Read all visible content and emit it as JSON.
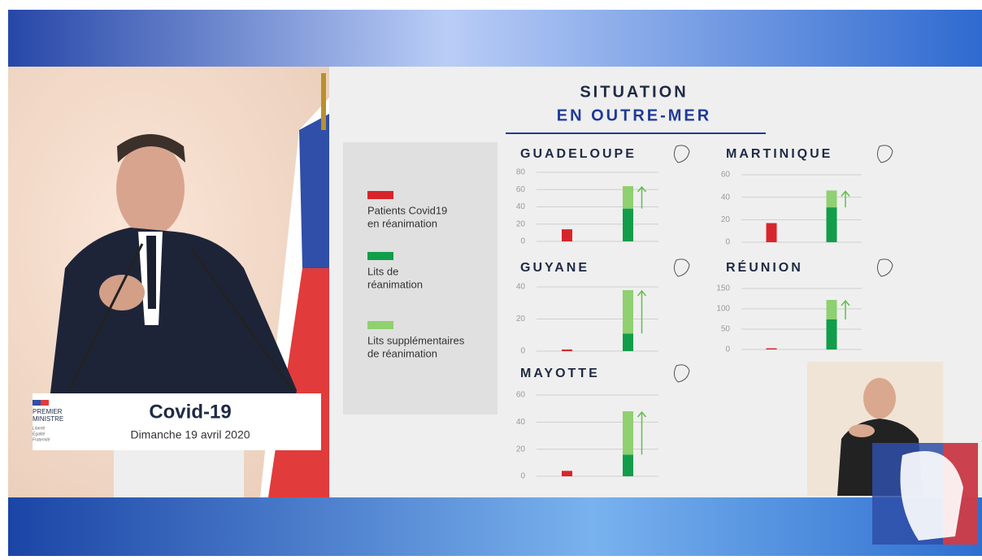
{
  "slide": {
    "title": [
      "SITUATION",
      "EN OUTRE-MER"
    ]
  },
  "podium": {
    "logo": [
      "PREMIER",
      "MINISTRE"
    ],
    "motto": [
      "Liberté",
      "Égalité",
      "Fraternité"
    ],
    "title": "Covid-19",
    "date": "Dimanche 19 avril 2020"
  },
  "legend": [
    {
      "label": [
        "Patients Covid19",
        "en réanimation"
      ],
      "color": "#d7262b"
    },
    {
      "label": [
        "Lits de",
        "réanimation"
      ],
      "color": "#129d4a"
    },
    {
      "label": [
        "Lits supplémentaires",
        "de réanimation"
      ],
      "color": "#8fd070"
    }
  ],
  "chart_data": [
    {
      "type": "bar",
      "title": "GUADELOUPE",
      "stacked": true,
      "categories": [
        null,
        null
      ],
      "ylim": [
        0,
        80
      ],
      "yticks": [
        0,
        20,
        40,
        60,
        80
      ],
      "grid": true,
      "series": [
        {
          "color": "#d7262b",
          "values": [
            14,
            null
          ]
        },
        {
          "color": "#129d4a",
          "values": [
            null,
            38
          ]
        },
        {
          "color": "#8fd070",
          "values": [
            null,
            26
          ]
        }
      ]
    },
    {
      "type": "bar",
      "title": "MARTINIQUE",
      "stacked": true,
      "categories": [
        null,
        null
      ],
      "ylim": [
        0,
        60
      ],
      "yticks": [
        0,
        20,
        40,
        60
      ],
      "grid": true,
      "series": [
        {
          "color": "#d7262b",
          "values": [
            17,
            null
          ]
        },
        {
          "color": "#129d4a",
          "values": [
            null,
            31
          ]
        },
        {
          "color": "#8fd070",
          "values": [
            null,
            15
          ]
        }
      ]
    },
    {
      "type": "bar",
      "title": "GUYANE",
      "stacked": true,
      "categories": [
        null,
        null
      ],
      "ylim": [
        0,
        40
      ],
      "yticks": [
        0,
        20,
        40
      ],
      "grid": true,
      "series": [
        {
          "color": "#d7262b",
          "values": [
            1,
            null
          ]
        },
        {
          "color": "#129d4a",
          "values": [
            null,
            11
          ]
        },
        {
          "color": "#8fd070",
          "values": [
            null,
            27
          ]
        }
      ]
    },
    {
      "type": "bar",
      "title": "RÉUNION",
      "stacked": true,
      "categories": [
        null,
        null
      ],
      "ylim": [
        0,
        150
      ],
      "yticks": [
        0,
        50,
        100,
        150
      ],
      "grid": true,
      "series": [
        {
          "color": "#d7262b",
          "values": [
            3,
            null
          ]
        },
        {
          "color": "#129d4a",
          "values": [
            null,
            74
          ]
        },
        {
          "color": "#8fd070",
          "values": [
            null,
            48
          ]
        }
      ]
    },
    {
      "type": "bar",
      "title": "MAYOTTE",
      "stacked": true,
      "categories": [
        null,
        null
      ],
      "ylim": [
        0,
        60
      ],
      "yticks": [
        0,
        20,
        40,
        60
      ],
      "grid": true,
      "series": [
        {
          "color": "#d7262b",
          "values": [
            4,
            null
          ]
        },
        {
          "color": "#129d4a",
          "values": [
            null,
            16
          ]
        },
        {
          "color": "#8fd070",
          "values": [
            null,
            32
          ]
        }
      ]
    }
  ]
}
